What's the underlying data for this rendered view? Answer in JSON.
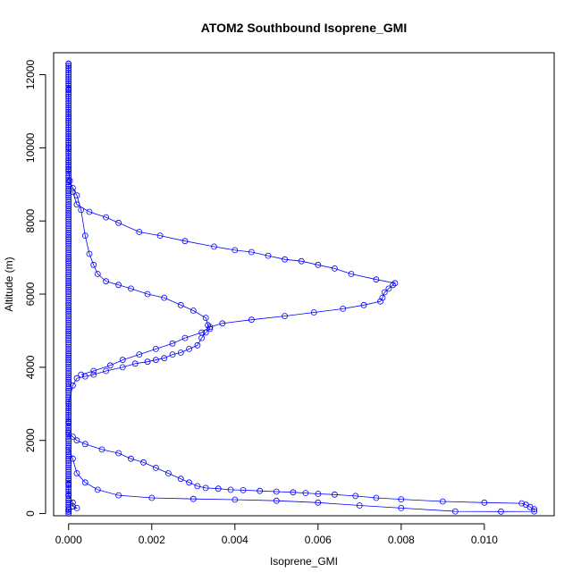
{
  "chart_data": {
    "type": "scatter",
    "title": "ATOM2 Southbound Isoprene_GMI",
    "xlabel": "Isoprene_GMI",
    "ylabel": "Altitude (m)",
    "xlim": [
      -0.00036,
      0.01168
    ],
    "ylim": [
      -60,
      12600
    ],
    "x_ticks": [
      0.0,
      0.002,
      0.004,
      0.006,
      0.008,
      0.01
    ],
    "x_tick_labels": [
      "0.000",
      "0.002",
      "0.004",
      "0.006",
      "0.008",
      "0.010"
    ],
    "y_ticks": [
      0,
      2000,
      4000,
      6000,
      8000,
      10000,
      12000
    ],
    "y_tick_labels": [
      "0",
      "2000",
      "4000",
      "6000",
      "8000",
      "10000",
      "12000"
    ],
    "grid": false,
    "legend": "none",
    "marker": "open-circle",
    "color": "#0000ff",
    "series": [
      {
        "points": [
          [
            0.0,
            12300
          ],
          [
            0.0,
            11600
          ],
          [
            0.0,
            10800
          ],
          [
            0.0,
            10000
          ],
          [
            0.0,
            9400
          ],
          [
            3e-05,
            9100
          ],
          [
            0.0001,
            8900
          ],
          [
            0.0002,
            8700
          ],
          [
            0.0003,
            8300
          ],
          [
            0.0004,
            7600
          ],
          [
            0.0005,
            7100
          ],
          [
            0.0006,
            6800
          ],
          [
            0.0007,
            6550
          ],
          [
            0.0009,
            6350
          ],
          [
            0.0012,
            6250
          ],
          [
            0.0015,
            6150
          ],
          [
            0.0019,
            6000
          ],
          [
            0.0023,
            5900
          ],
          [
            0.0027,
            5700
          ],
          [
            0.003,
            5550
          ],
          [
            0.0033,
            5350
          ],
          [
            0.00335,
            5150
          ],
          [
            0.0034,
            5050
          ],
          [
            0.0033,
            4950
          ],
          [
            0.0032,
            4800
          ],
          [
            0.0031,
            4600
          ],
          [
            0.0029,
            4500
          ],
          [
            0.0027,
            4400
          ],
          [
            0.0025,
            4350
          ],
          [
            0.0023,
            4250
          ],
          [
            0.0021,
            4200
          ],
          [
            0.0019,
            4150
          ],
          [
            0.0016,
            4100
          ],
          [
            0.0013,
            4000
          ],
          [
            0.0009,
            3900
          ],
          [
            0.0006,
            3800
          ],
          [
            0.0004,
            3750
          ],
          [
            0.0002,
            3700
          ],
          [
            0.0001,
            3500
          ],
          [
            0.0,
            3000
          ],
          [
            0.0,
            2500
          ]
        ]
      },
      {
        "points": [
          [
            0.0003,
            3800
          ],
          [
            0.0006,
            3900
          ],
          [
            0.001,
            4050
          ],
          [
            0.0013,
            4200
          ],
          [
            0.0017,
            4350
          ],
          [
            0.0021,
            4500
          ],
          [
            0.0025,
            4650
          ],
          [
            0.0028,
            4800
          ],
          [
            0.0032,
            4950
          ],
          [
            0.0034,
            5100
          ],
          [
            0.0037,
            5200
          ],
          [
            0.0044,
            5300
          ],
          [
            0.0052,
            5400
          ],
          [
            0.0059,
            5500
          ],
          [
            0.0066,
            5600
          ],
          [
            0.0071,
            5700
          ],
          [
            0.0075,
            5800
          ],
          [
            0.00755,
            5900
          ],
          [
            0.0076,
            6050
          ],
          [
            0.0077,
            6150
          ],
          [
            0.0078,
            6250
          ],
          [
            0.00785,
            6300
          ],
          [
            0.0074,
            6400
          ],
          [
            0.0068,
            6550
          ],
          [
            0.0064,
            6700
          ],
          [
            0.006,
            6800
          ],
          [
            0.0056,
            6900
          ],
          [
            0.0052,
            6950
          ],
          [
            0.0048,
            7050
          ],
          [
            0.0044,
            7150
          ],
          [
            0.004,
            7200
          ],
          [
            0.0035,
            7300
          ],
          [
            0.0028,
            7450
          ],
          [
            0.0022,
            7600
          ],
          [
            0.0017,
            7700
          ],
          [
            0.0012,
            7950
          ],
          [
            0.0009,
            8100
          ],
          [
            0.0005,
            8250
          ],
          [
            0.0002,
            8450
          ],
          [
            0.0001,
            8800
          ]
        ]
      },
      {
        "points": [
          [
            0.0,
            2200
          ],
          [
            0.0001,
            2100
          ],
          [
            0.0002,
            2000
          ],
          [
            0.0004,
            1900
          ],
          [
            0.0008,
            1750
          ],
          [
            0.0012,
            1650
          ],
          [
            0.0015,
            1500
          ],
          [
            0.0018,
            1400
          ],
          [
            0.0021,
            1250
          ],
          [
            0.0024,
            1100
          ],
          [
            0.0027,
            950
          ],
          [
            0.0029,
            850
          ],
          [
            0.0031,
            750
          ],
          [
            0.0033,
            700
          ],
          [
            0.0036,
            680
          ],
          [
            0.0039,
            650
          ],
          [
            0.0042,
            640
          ],
          [
            0.0046,
            620
          ],
          [
            0.005,
            600
          ],
          [
            0.0054,
            580
          ],
          [
            0.0057,
            560
          ],
          [
            0.006,
            540
          ],
          [
            0.0064,
            520
          ],
          [
            0.0069,
            480
          ],
          [
            0.0074,
            430
          ],
          [
            0.008,
            390
          ],
          [
            0.009,
            330
          ],
          [
            0.01,
            300
          ],
          [
            0.0109,
            280
          ],
          [
            0.011,
            240
          ],
          [
            0.0111,
            180
          ],
          [
            0.0112,
            120
          ],
          [
            0.0112,
            60
          ],
          [
            0.0104,
            55
          ],
          [
            0.0093,
            60
          ],
          [
            0.008,
            150
          ],
          [
            0.007,
            220
          ],
          [
            0.006,
            300
          ],
          [
            0.005,
            350
          ],
          [
            0.004,
            380
          ],
          [
            0.003,
            400
          ],
          [
            0.002,
            430
          ],
          [
            0.0012,
            500
          ],
          [
            0.0007,
            650
          ],
          [
            0.0004,
            850
          ],
          [
            0.0002,
            1100
          ],
          [
            0.0001,
            1500
          ],
          [
            0.0,
            1800
          ]
        ]
      },
      {
        "points": [
          [
            0.0,
            800
          ],
          [
            0.0,
            500
          ],
          [
            0.0001,
            300
          ],
          [
            0.0001,
            200
          ],
          [
            0.0002,
            150
          ],
          [
            0.0,
            100
          ],
          [
            0.0,
            50
          ]
        ]
      }
    ]
  }
}
